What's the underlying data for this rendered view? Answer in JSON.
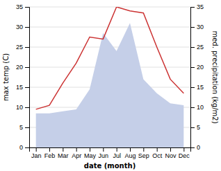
{
  "chart_data": {
    "type": "line",
    "xlabel": "date (month)",
    "ylabel": "max temp (C)",
    "y2label": "med. precipitation (kg/m2)",
    "categories": [
      "Jan",
      "Feb",
      "Mar",
      "Apr",
      "May",
      "Jun",
      "Jul",
      "Aug",
      "Sep",
      "Oct",
      "Nov",
      "Dec"
    ],
    "series": [
      {
        "type": "area",
        "color": "#c5cfe8",
        "values": [
          8.5,
          8.5,
          9.0,
          9.5,
          14.5,
          28.5,
          24.0,
          31.0,
          17.0,
          13.5,
          11.0,
          10.5
        ]
      },
      {
        "type": "line",
        "color": "#cc3333",
        "values": [
          9.5,
          10.5,
          16.0,
          21.0,
          27.5,
          27.0,
          35.0,
          34.0,
          33.5,
          25.0,
          17.0,
          13.5
        ]
      }
    ],
    "ylim": [
      0,
      35
    ],
    "yticks": [
      0,
      5,
      10,
      15,
      20,
      25,
      30,
      35
    ],
    "y2lim": [
      0,
      35
    ],
    "y2ticks": [
      0,
      5,
      10,
      15,
      20,
      25,
      30,
      35
    ],
    "grid": true
  }
}
